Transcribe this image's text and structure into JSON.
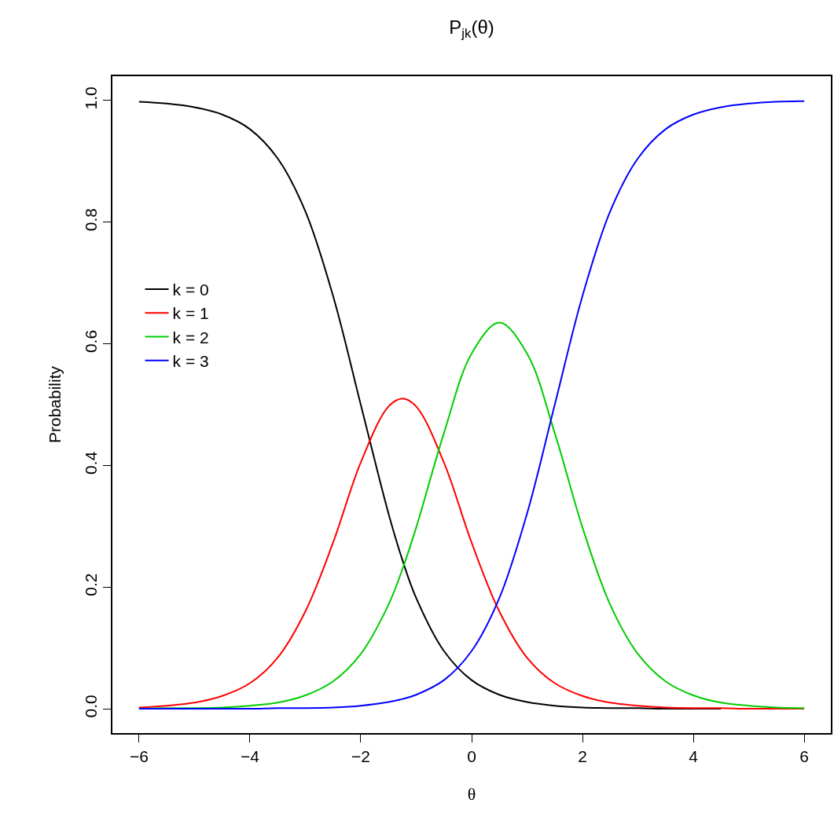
{
  "chart_data": {
    "type": "line",
    "title": "P$_{jk}$(θ)",
    "xlabel": "θ",
    "ylabel": "Probability",
    "x": [
      -6,
      -5.5,
      -5,
      -4.5,
      -4,
      -3.5,
      -3,
      -2.5,
      -2,
      -1.5,
      -1.25,
      -1,
      -0.5,
      0,
      0.5,
      1,
      1.5,
      2,
      2.5,
      3,
      3.5,
      4,
      4.5,
      5,
      5.5,
      6
    ],
    "series": [
      {
        "name": "k = 0",
        "color": "#000000",
        "values": [
          0.998,
          0.995,
          0.989,
          0.977,
          0.953,
          0.905,
          0.818,
          0.679,
          0.5,
          0.321,
          0.245,
          0.182,
          0.095,
          0.047,
          0.023,
          0.011,
          0.005,
          0.002,
          0.001,
          0.001,
          0,
          0,
          0,
          null,
          null,
          null
        ]
      },
      {
        "name": "k = 1",
        "color": "#ff0000",
        "values": [
          0.002,
          0.005,
          0.01,
          0.021,
          0.042,
          0.084,
          0.16,
          0.273,
          0.405,
          0.497,
          0.51,
          0.497,
          0.405,
          0.273,
          0.16,
          0.084,
          0.042,
          0.021,
          0.01,
          0.005,
          0.002,
          0.001,
          0.001,
          0,
          0,
          0
        ]
      },
      {
        "name": "k = 2",
        "color": "#00cd00",
        "values": [
          0,
          0.001,
          0.001,
          0.002,
          0.005,
          0.01,
          0.022,
          0.045,
          0.09,
          0.171,
          0.229,
          0.298,
          0.453,
          0.584,
          0.635,
          0.584,
          0.453,
          0.298,
          0.171,
          0.09,
          0.045,
          0.022,
          0.01,
          0.005,
          0.002,
          0.001
        ]
      },
      {
        "name": "k = 3",
        "color": "#0000ff",
        "values": [
          0,
          0,
          0,
          0,
          0,
          0.001,
          0.001,
          0.002,
          0.005,
          0.011,
          0.016,
          0.023,
          0.047,
          0.095,
          0.182,
          0.321,
          0.5,
          0.679,
          0.818,
          0.905,
          0.953,
          0.977,
          0.989,
          0.995,
          0.998,
          0.999
        ]
      }
    ],
    "xlim": [
      -6.48,
      6.48
    ],
    "xticks": [
      {
        "value": -6,
        "label": "−6"
      },
      {
        "value": -4,
        "label": "−4"
      },
      {
        "value": -2,
        "label": "−2"
      },
      0,
      2,
      4,
      6
    ],
    "ylim": [
      -0.04,
      1.04
    ],
    "yticks": [
      {
        "value": 0,
        "label": "0.0"
      },
      0.2,
      0.4,
      0.6,
      0.8,
      {
        "value": 1,
        "label": "1.0"
      }
    ],
    "grid": false,
    "legend": "top left",
    "marker": "none",
    "line_style": "solid"
  }
}
